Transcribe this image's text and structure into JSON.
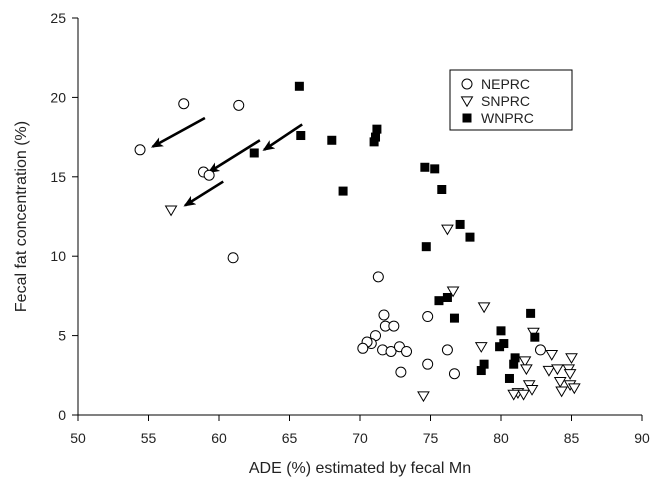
{
  "chart_data": {
    "type": "scatter",
    "title": "",
    "xlabel": "ADE (%) estimated by fecal Mn",
    "ylabel": "Fecal fat concentration (%)",
    "xlim": [
      50,
      90
    ],
    "ylim": [
      0,
      25
    ],
    "xticks": [
      50,
      55,
      60,
      65,
      70,
      75,
      80,
      85,
      90
    ],
    "yticks": [
      0,
      5,
      10,
      15,
      20,
      25
    ],
    "grid": false,
    "legend_position": "top-right",
    "series": [
      {
        "name": "NEPRC",
        "marker": "open-circle",
        "points": [
          [
            54.4,
            16.7
          ],
          [
            57.5,
            19.6
          ],
          [
            58.9,
            15.3
          ],
          [
            59.3,
            15.1
          ],
          [
            61.4,
            19.5
          ],
          [
            61.0,
            9.9
          ],
          [
            71.3,
            8.7
          ],
          [
            71.7,
            6.3
          ],
          [
            71.8,
            5.6
          ],
          [
            72.4,
            5.6
          ],
          [
            71.1,
            5.0
          ],
          [
            70.8,
            4.5
          ],
          [
            70.5,
            4.6
          ],
          [
            70.2,
            4.2
          ],
          [
            71.6,
            4.1
          ],
          [
            72.2,
            4.0
          ],
          [
            72.8,
            4.3
          ],
          [
            73.3,
            4.0
          ],
          [
            72.9,
            2.7
          ],
          [
            74.8,
            6.2
          ],
          [
            74.8,
            3.2
          ],
          [
            76.2,
            4.1
          ],
          [
            76.7,
            2.6
          ],
          [
            82.8,
            4.1
          ]
        ]
      },
      {
        "name": "SNPRC",
        "marker": "open-triangle-down",
        "points": [
          [
            56.6,
            12.9
          ],
          [
            74.5,
            1.2
          ],
          [
            76.2,
            11.7
          ],
          [
            76.6,
            7.8
          ],
          [
            78.6,
            4.3
          ],
          [
            78.8,
            6.8
          ],
          [
            81.7,
            3.4
          ],
          [
            81.8,
            2.9
          ],
          [
            82.0,
            1.9
          ],
          [
            81.2,
            1.4
          ],
          [
            80.9,
            1.3
          ],
          [
            81.6,
            1.3
          ],
          [
            82.2,
            1.6
          ],
          [
            82.3,
            5.2
          ],
          [
            83.6,
            3.8
          ],
          [
            83.4,
            2.8
          ],
          [
            84.0,
            2.9
          ],
          [
            84.2,
            2.1
          ],
          [
            84.3,
            1.5
          ],
          [
            84.8,
            2.9
          ],
          [
            85.0,
            3.6
          ],
          [
            84.9,
            1.9
          ],
          [
            85.2,
            1.7
          ],
          [
            84.9,
            2.6
          ]
        ]
      },
      {
        "name": "WNPRC",
        "marker": "filled-square",
        "points": [
          [
            65.7,
            20.7
          ],
          [
            65.8,
            17.6
          ],
          [
            62.5,
            16.5
          ],
          [
            68.0,
            17.3
          ],
          [
            68.8,
            14.1
          ],
          [
            71.2,
            18.0
          ],
          [
            71.1,
            17.5
          ],
          [
            71.0,
            17.2
          ],
          [
            74.6,
            15.6
          ],
          [
            75.3,
            15.5
          ],
          [
            75.8,
            14.2
          ],
          [
            74.7,
            10.6
          ],
          [
            77.1,
            12.0
          ],
          [
            77.8,
            11.2
          ],
          [
            75.6,
            7.2
          ],
          [
            76.2,
            7.4
          ],
          [
            76.7,
            6.1
          ],
          [
            80.0,
            5.3
          ],
          [
            80.2,
            4.5
          ],
          [
            79.9,
            4.3
          ],
          [
            82.1,
            6.4
          ],
          [
            82.4,
            4.9
          ],
          [
            78.8,
            3.2
          ],
          [
            78.6,
            2.8
          ],
          [
            81.0,
            3.6
          ],
          [
            80.9,
            3.2
          ],
          [
            80.6,
            2.3
          ]
        ]
      }
    ],
    "annotations": [
      {
        "type": "arrow",
        "from": [
          59.0,
          18.7
        ],
        "to": [
          55.3,
          16.9
        ]
      },
      {
        "type": "arrow",
        "from": [
          62.9,
          17.3
        ],
        "to": [
          59.3,
          15.3
        ]
      },
      {
        "type": "arrow",
        "from": [
          60.3,
          14.7
        ],
        "to": [
          57.6,
          13.2
        ]
      },
      {
        "type": "arrow",
        "from": [
          65.9,
          18.3
        ],
        "to": [
          63.2,
          16.7
        ]
      }
    ]
  }
}
